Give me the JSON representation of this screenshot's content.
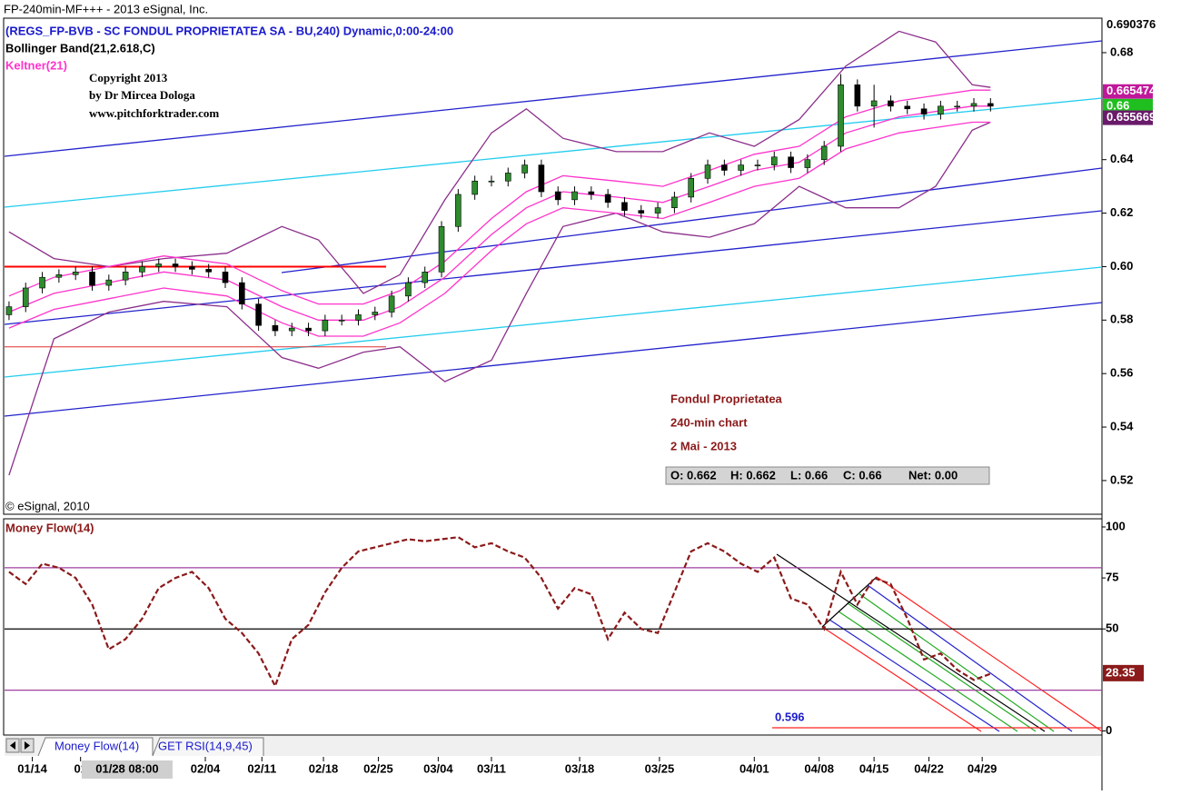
{
  "window": {
    "title": "FP-240min-MF+++ - 2013 eSignal, Inc.",
    "tabs": [
      "Money Flow(14)",
      "GET RSI(14,9,45)"
    ]
  },
  "chart_data": [
    {
      "type": "candlestick",
      "title": "(REGS_FP-BVB - SC FONDUL PROPRIETATEA SA - BU,240) Dynamic,0:00-24:00",
      "up_color": "#2e8b2e",
      "down_color": "#000000",
      "open": [
        0.582,
        0.585,
        0.592,
        0.596,
        0.597,
        0.598,
        0.593,
        0.595,
        0.598,
        0.6,
        0.601,
        0.6,
        0.599,
        0.598,
        0.594,
        0.586,
        0.578,
        0.576,
        0.577,
        0.576,
        0.58,
        0.58,
        0.582,
        0.583,
        0.589,
        0.594,
        0.598,
        0.615,
        0.627,
        0.632,
        0.632,
        0.635,
        0.638,
        0.628,
        0.625,
        0.628,
        0.627,
        0.624,
        0.621,
        0.62,
        0.622,
        0.626,
        0.633,
        0.638,
        0.636,
        0.638,
        0.638,
        0.641,
        0.637,
        0.64,
        0.645,
        0.668,
        0.66,
        0.662,
        0.66,
        0.659,
        0.657,
        0.66,
        0.66,
        0.661
      ],
      "high": [
        0.587,
        0.594,
        0.598,
        0.599,
        0.6,
        0.6,
        0.597,
        0.6,
        0.602,
        0.603,
        0.603,
        0.602,
        0.601,
        0.6,
        0.596,
        0.588,
        0.58,
        0.579,
        0.579,
        0.582,
        0.582,
        0.584,
        0.585,
        0.591,
        0.596,
        0.6,
        0.617,
        0.629,
        0.634,
        0.634,
        0.637,
        0.64,
        0.64,
        0.63,
        0.63,
        0.63,
        0.629,
        0.626,
        0.623,
        0.624,
        0.628,
        0.635,
        0.64,
        0.64,
        0.64,
        0.64,
        0.643,
        0.643,
        0.642,
        0.647,
        0.672,
        0.67,
        0.668,
        0.664,
        0.662,
        0.661,
        0.662,
        0.662,
        0.663,
        0.663
      ],
      "low": [
        0.58,
        0.583,
        0.59,
        0.594,
        0.595,
        0.591,
        0.591,
        0.593,
        0.596,
        0.598,
        0.598,
        0.597,
        0.596,
        0.592,
        0.584,
        0.576,
        0.574,
        0.574,
        0.574,
        0.574,
        0.578,
        0.578,
        0.58,
        0.581,
        0.587,
        0.592,
        0.596,
        0.613,
        0.625,
        0.63,
        0.63,
        0.633,
        0.626,
        0.623,
        0.623,
        0.625,
        0.622,
        0.619,
        0.618,
        0.618,
        0.62,
        0.624,
        0.631,
        0.634,
        0.634,
        0.636,
        0.636,
        0.635,
        0.635,
        0.638,
        0.643,
        0.658,
        0.652,
        0.658,
        0.657,
        0.655,
        0.655,
        0.658,
        0.658,
        0.658
      ],
      "close": [
        0.585,
        0.592,
        0.596,
        0.597,
        0.598,
        0.593,
        0.595,
        0.598,
        0.6,
        0.601,
        0.6,
        0.599,
        0.598,
        0.594,
        0.586,
        0.578,
        0.576,
        0.577,
        0.576,
        0.58,
        0.58,
        0.582,
        0.583,
        0.589,
        0.594,
        0.598,
        0.615,
        0.627,
        0.632,
        0.632,
        0.635,
        0.638,
        0.628,
        0.625,
        0.628,
        0.627,
        0.624,
        0.621,
        0.62,
        0.622,
        0.626,
        0.633,
        0.638,
        0.636,
        0.638,
        0.638,
        0.641,
        0.637,
        0.64,
        0.645,
        0.668,
        0.66,
        0.662,
        0.66,
        0.659,
        0.657,
        0.66,
        0.66,
        0.661,
        0.66
      ],
      "band_x": [
        0,
        2.7,
        6,
        9.3,
        13.1,
        16.4,
        18.6,
        21.3,
        23.5,
        26.2,
        29,
        31.1,
        33.3,
        36.5,
        39.3,
        42.1,
        44.8,
        47.5,
        50.3,
        53.5,
        55.7,
        57.9,
        59
      ],
      "series": [
        {
          "name": "Bollinger Band(21,2.618,C)",
          "color": "#8b2f8b",
          "upper": [
            0.613,
            0.603,
            0.6,
            0.603,
            0.605,
            0.615,
            0.61,
            0.59,
            0.597,
            0.625,
            0.65,
            0.659,
            0.648,
            0.643,
            0.643,
            0.65,
            0.645,
            0.655,
            0.675,
            0.688,
            0.684,
            0.668,
            0.667
          ],
          "lower": [
            0.522,
            0.573,
            0.583,
            0.587,
            0.585,
            0.566,
            0.562,
            0.568,
            0.57,
            0.557,
            0.565,
            0.59,
            0.615,
            0.62,
            0.613,
            0.611,
            0.616,
            0.63,
            0.622,
            0.622,
            0.63,
            0.651,
            0.654
          ]
        },
        {
          "name": "Keltner(21)",
          "color": "#ff33cc",
          "upper": [
            0.589,
            0.596,
            0.6,
            0.604,
            0.601,
            0.591,
            0.586,
            0.586,
            0.591,
            0.602,
            0.618,
            0.628,
            0.634,
            0.632,
            0.63,
            0.636,
            0.642,
            0.645,
            0.656,
            0.662,
            0.664,
            0.666,
            0.666
          ],
          "middle": [
            0.583,
            0.59,
            0.594,
            0.598,
            0.595,
            0.585,
            0.58,
            0.58,
            0.585,
            0.596,
            0.612,
            0.622,
            0.628,
            0.626,
            0.624,
            0.63,
            0.636,
            0.639,
            0.65,
            0.656,
            0.658,
            0.66,
            0.66
          ],
          "lower": [
            0.577,
            0.584,
            0.588,
            0.592,
            0.589,
            0.579,
            0.574,
            0.574,
            0.579,
            0.59,
            0.606,
            0.616,
            0.622,
            0.62,
            0.618,
            0.624,
            0.63,
            0.633,
            0.644,
            0.65,
            0.652,
            0.654,
            0.654
          ]
        }
      ],
      "levels": [
        {
          "value": 0.6,
          "color": "#ff0000"
        },
        {
          "value": 0.57,
          "color": "#e03030"
        }
      ],
      "price_tags": [
        {
          "value": 0.690376,
          "color": "#ffffff",
          "text_color": "#000000"
        },
        {
          "value": 0.665474,
          "color": "#c0189a",
          "text_color": "#ffffff"
        },
        {
          "value": 0.66,
          "color": "#1fbf1f",
          "text_color": "#ffffff"
        },
        {
          "value": 0.655669,
          "color": "#6a1a6a",
          "text_color": "#ffffff"
        }
      ],
      "copyright": [
        "Copyright 2013",
        "by Dr Mircea Dologa",
        "www.pitchforktrader.com"
      ],
      "annotation": [
        "Fondul Proprietatea",
        "240-min chart",
        "2 Mai - 2013"
      ],
      "ohlc": [
        "O: 0.662",
        "H: 0.662",
        "L: 0.66",
        "C: 0.66",
        "Net: 0.00"
      ],
      "credit": "© eSignal, 2010",
      "xlim": [
        -0.27,
        65.7
      ],
      "xticks": [
        {
          "value": 1.4,
          "label": "01/14"
        },
        {
          "value": 4.3,
          "label": "01"
        },
        {
          "value": 11.8,
          "label": "02/04"
        },
        {
          "value": 15.2,
          "label": "02/11"
        },
        {
          "value": 18.9,
          "label": "02/18"
        },
        {
          "value": 22.2,
          "label": "02/25"
        },
        {
          "value": 25.8,
          "label": "03/04"
        },
        {
          "value": 29,
          "label": "03/11"
        },
        {
          "value": 34.3,
          "label": "03/18"
        },
        {
          "value": 39.1,
          "label": "03/25"
        },
        {
          "value": 44.8,
          "label": "04/01"
        },
        {
          "value": 48.7,
          "label": "04/08"
        },
        {
          "value": 52,
          "label": "04/15"
        },
        {
          "value": 55.3,
          "label": "04/22"
        },
        {
          "value": 58.5,
          "label": "04/29"
        }
      ],
      "cursor": {
        "value": 7.1,
        "label": "01/28 08:00"
      },
      "ylim": [
        0.5074,
        0.6929
      ],
      "yticks": [
        0.52,
        0.54,
        0.56,
        0.58,
        {
          "value": 0.6,
          "label": "0.60"
        },
        0.62,
        0.64,
        0.68
      ]
    },
    {
      "type": "line",
      "title": "Money Flow(14)",
      "color": "#8b1a1a",
      "values": [
        78,
        72,
        82,
        80,
        75,
        62,
        40,
        45,
        55,
        70,
        75,
        78,
        70,
        55,
        48,
        38,
        22,
        45,
        52,
        68,
        80,
        88,
        90,
        92,
        94,
        93,
        94,
        95,
        90,
        92,
        88,
        85,
        75,
        60,
        70,
        67,
        45,
        58,
        50,
        48,
        68,
        88,
        92,
        88,
        82,
        78,
        85,
        65,
        62,
        50,
        78,
        62,
        75,
        72,
        55,
        35,
        38,
        30,
        25,
        28
      ],
      "levels": [
        {
          "value": 80,
          "color": "#a040a0"
        },
        {
          "value": 50,
          "color": "#000000"
        },
        {
          "value": 20,
          "color": "#a040a0"
        }
      ],
      "last_tag": {
        "value": 28.35,
        "color": "#8b1a1a"
      },
      "note": "0.596",
      "ylim": [
        -2,
        104
      ],
      "yticks": [
        0,
        50,
        75,
        100
      ]
    }
  ]
}
